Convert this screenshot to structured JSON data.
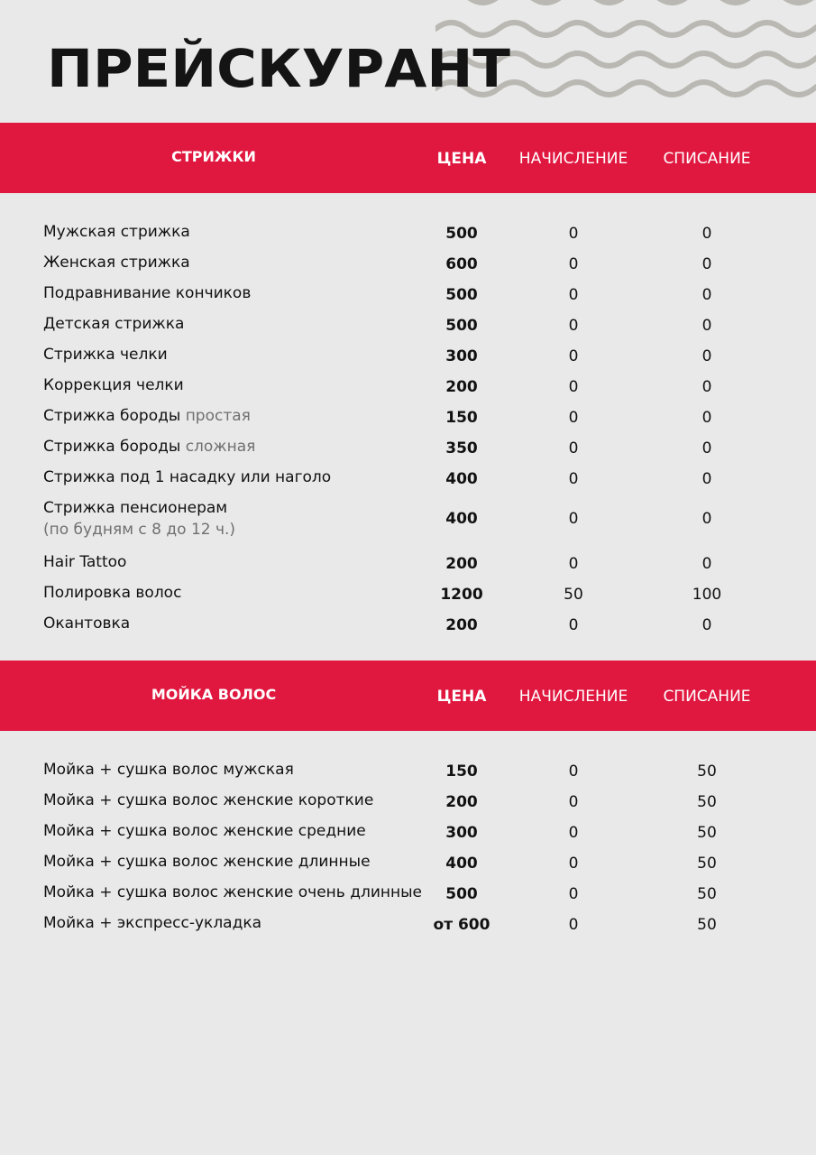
{
  "title": "ПРЕЙСКУРАНТ",
  "colors": {
    "accent": "#e0173f",
    "background": "#e9e9e9",
    "waves": "#b9b8b2"
  },
  "sections": [
    {
      "label": "СТРИЖКИ",
      "col_price": "ЦЕНА",
      "col_accrual": "НАЧИСЛЕНИЕ",
      "col_writeoff": "СПИСАНИЕ",
      "items": [
        {
          "name": "Мужская стрижка",
          "price": "500",
          "accrual": "0",
          "writeoff": "0"
        },
        {
          "name": "Женская стрижка",
          "price": "600",
          "accrual": "0",
          "writeoff": "0"
        },
        {
          "name": "Подравнивание кончиков",
          "price": "500",
          "accrual": "0",
          "writeoff": "0"
        },
        {
          "name": "Детская стрижка",
          "price": "500",
          "accrual": "0",
          "writeoff": "0"
        },
        {
          "name": "Стрижка челки",
          "price": "300",
          "accrual": "0",
          "writeoff": "0"
        },
        {
          "name": "Коррекция челки",
          "price": "200",
          "accrual": "0",
          "writeoff": "0"
        },
        {
          "name": "Стрижка бороды",
          "note": "простая",
          "price": "150",
          "accrual": "0",
          "writeoff": "0"
        },
        {
          "name": "Стрижка бороды",
          "note": "сложная",
          "price": "350",
          "accrual": "0",
          "writeoff": "0"
        },
        {
          "name": "Стрижка под 1 насадку или наголо",
          "price": "400",
          "accrual": "0",
          "writeoff": "0"
        },
        {
          "name": "Стрижка пенсионерам",
          "subnote": "(по будням с 8 до 12 ч.)",
          "price": "400",
          "accrual": "0",
          "writeoff": "0"
        },
        {
          "name": "Hair Tattoo",
          "price": "200",
          "accrual": "0",
          "writeoff": "0"
        },
        {
          "name": "Полировка волос",
          "price": "1200",
          "accrual": "50",
          "writeoff": "100"
        },
        {
          "name": "Окантовка",
          "price": "200",
          "accrual": "0",
          "writeoff": "0"
        }
      ]
    },
    {
      "label": "МОЙКА ВОЛОС",
      "col_price": "ЦЕНА",
      "col_accrual": "НАЧИСЛЕНИЕ",
      "col_writeoff": "СПИСАНИЕ",
      "items": [
        {
          "name": "Мойка + сушка волос мужская",
          "price": "150",
          "accrual": "0",
          "writeoff": "50"
        },
        {
          "name": "Мойка + сушка волос женские короткие",
          "price": "200",
          "accrual": "0",
          "writeoff": "50"
        },
        {
          "name": "Мойка + сушка волос женские средние",
          "price": "300",
          "accrual": "0",
          "writeoff": "50"
        },
        {
          "name": "Мойка + сушка волос женские длинные",
          "price": "400",
          "accrual": "0",
          "writeoff": "50"
        },
        {
          "name": "Мойка + сушка волос женские очень длинные",
          "price": "500",
          "accrual": "0",
          "writeoff": "50"
        },
        {
          "name": "Мойка + экспресс-укладка",
          "price": "от 600",
          "accrual": "0",
          "writeoff": "50"
        }
      ]
    }
  ]
}
